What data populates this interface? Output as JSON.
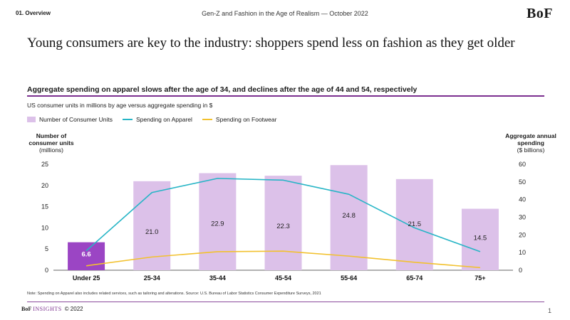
{
  "header": {
    "section": "01. Overview",
    "report_title": "Gen-Z and Fashion in the Age of Realism — October 2022",
    "logo": "BoF"
  },
  "headline": "Young consumers are key to the industry: shoppers spend less on fashion as they get older",
  "subheadline": "Aggregate spending on apparel slows after the age of 34, and declines after the age of 44 and 54, respectively",
  "description": "US consumer units in millions by age versus aggregate spending in $",
  "footnote": "Note: Spending on Apparel also includes related services, such as tailoring and alterations. Source: U.S. Bureau of Labor Statistics Consumer Expenditure Surveys, 2021",
  "footer": {
    "brand_bold": "BoF",
    "brand_insights": "INSIGHTS",
    "copyright": "© 2022",
    "page_number": "1"
  },
  "colors": {
    "accent": "#7b2f8f",
    "bar": "#dcc1e9",
    "bar_highlight": "#9b45c4",
    "apparel": "#27b5c6",
    "footwear": "#f2c12e"
  },
  "chart_data": {
    "type": "bar",
    "categories": [
      "Under 25",
      "25-34",
      "35-44",
      "45-54",
      "55-64",
      "65-74",
      "75+"
    ],
    "left_axis": {
      "title": "Number of consumer units",
      "unit": "(millions)",
      "ylim": [
        0,
        25
      ],
      "ticks": [
        0,
        5,
        10,
        15,
        20,
        25
      ]
    },
    "right_axis": {
      "title": "Aggregate annual spending",
      "unit": "($ billions)",
      "ylim": [
        0,
        60
      ],
      "ticks": [
        0,
        10,
        20,
        30,
        40,
        50,
        60
      ]
    },
    "series": [
      {
        "name": "Number of Consumer Units",
        "kind": "bar",
        "axis": "left",
        "values": [
          6.6,
          21.0,
          22.9,
          22.3,
          24.8,
          21.5,
          14.5
        ],
        "labels": [
          "6.6",
          "21.0",
          "22.9",
          "22.3",
          "24.8",
          "21.5",
          "14.5"
        ]
      },
      {
        "name": "Spending on Apparel",
        "kind": "line",
        "axis": "right",
        "values": [
          11,
          44,
          52,
          51,
          43,
          24,
          10.5
        ]
      },
      {
        "name": "Spending on Footwear",
        "kind": "line",
        "axis": "right",
        "values": [
          2.5,
          7.5,
          10.5,
          10.8,
          8,
          4.5,
          1.5
        ]
      }
    ],
    "grid": false
  }
}
